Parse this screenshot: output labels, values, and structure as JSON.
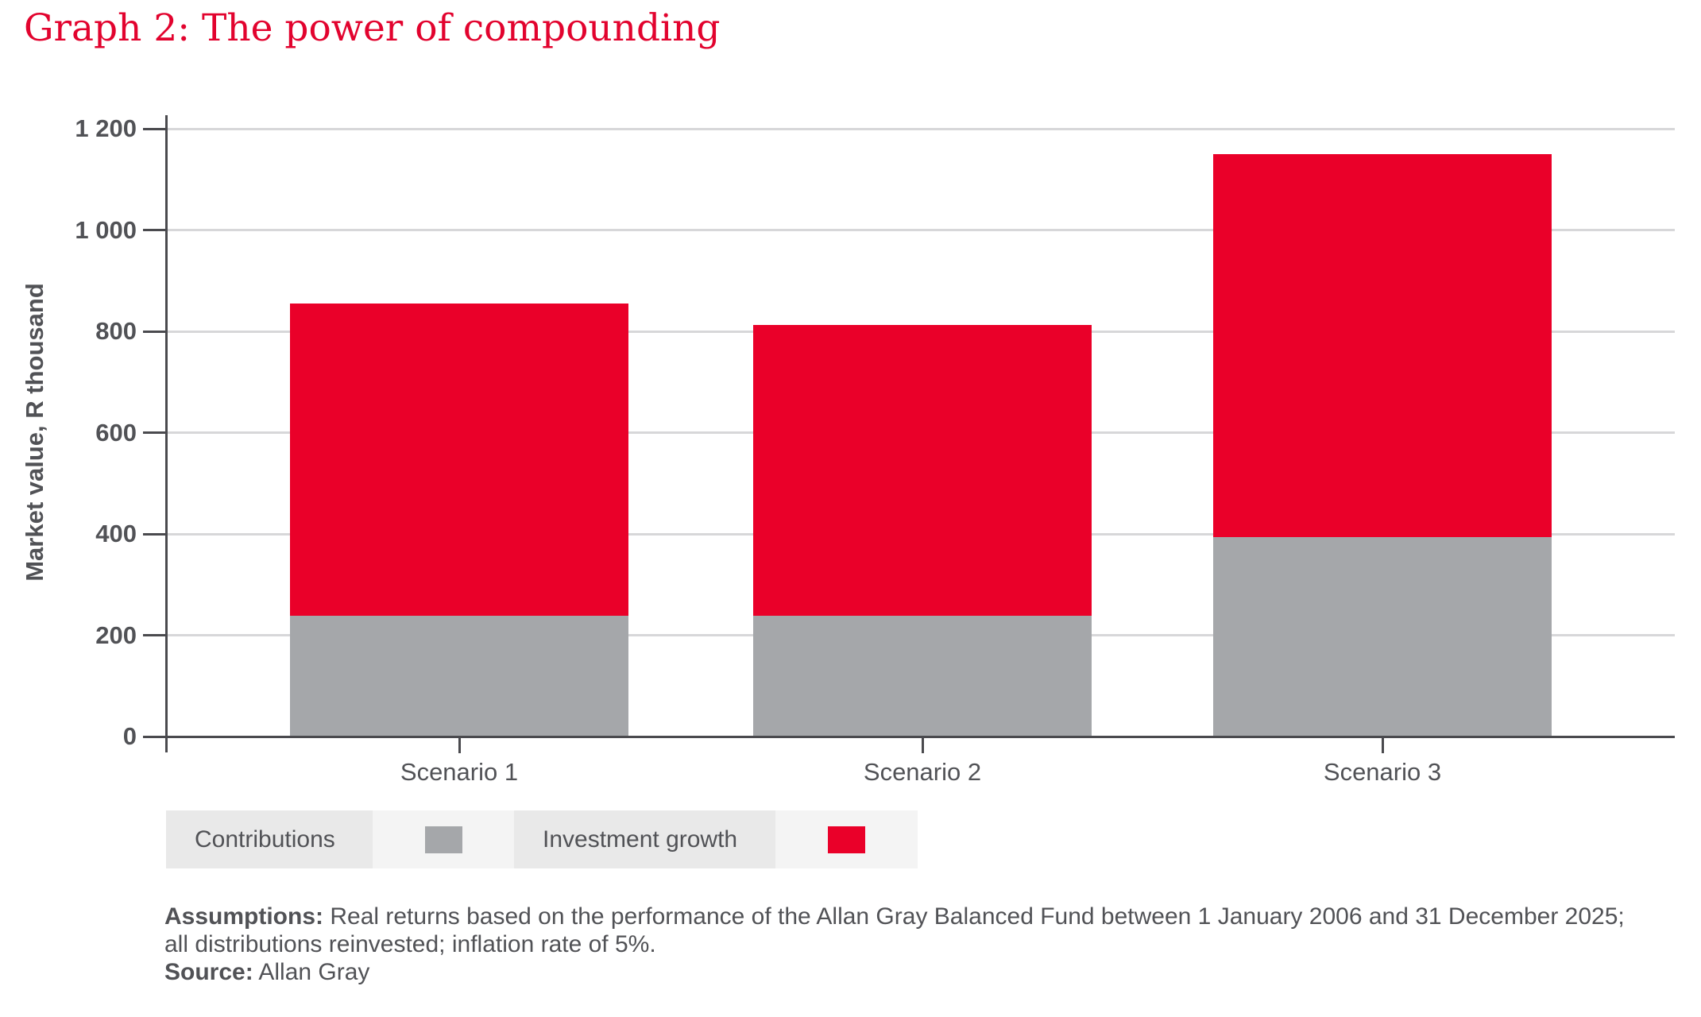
{
  "chart_data": {
    "type": "bar",
    "stacked": true,
    "title": "Graph 2: The power of compounding",
    "categories": [
      "Scenario 1",
      "Scenario 2",
      "Scenario 3"
    ],
    "series": [
      {
        "name": "Contributions",
        "color": "#a5a7aa",
        "values": [
          238,
          238,
          394
        ]
      },
      {
        "name": "Investment growth",
        "color": "#ea0029",
        "values": [
          617,
          574,
          756
        ]
      }
    ],
    "stack_totals": [
      855,
      812,
      1150
    ],
    "xlabel": "",
    "ylabel": "Market value, R thousand",
    "ylim": [
      0,
      1200
    ],
    "yticks": [
      0,
      200,
      400,
      600,
      800,
      1000,
      1200
    ],
    "ytick_labels": [
      "0",
      "200",
      "400",
      "600",
      "800",
      "1 000",
      "1 200"
    ],
    "grid": "horizontal-light",
    "legend_position": "below-chart"
  },
  "legend": {
    "items": [
      {
        "label": "Contributions",
        "color": "#a5a7aa"
      },
      {
        "label": "Investment growth",
        "color": "#ea0029"
      }
    ]
  },
  "footnote": {
    "line1_bold": "Assumptions:",
    "line1_text": " Real returns based on the performance of the Allan Gray Balanced Fund between 1 January 2006 and 31 December 2025;",
    "line2_text": "all distributions reinvested; inflation rate of 5%.",
    "line3_bold": "Source:",
    "line3_text": " Allan Gray"
  },
  "colors": {
    "title_red": "#e2032e",
    "bar_red": "#ea0029",
    "bar_gray": "#a5a7aa",
    "axis_dark": "#4a4a4e",
    "grid_light": "#d7d7d9",
    "text_gray": "#515256",
    "legend_bg_dark": "#e9e9e9",
    "legend_bg_light": "#f4f4f4"
  }
}
